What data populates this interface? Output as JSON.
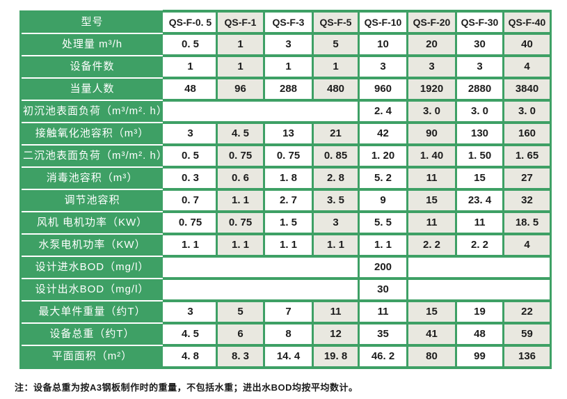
{
  "colors": {
    "table_green": "#3ea065",
    "cell_shaded": "#e9e8e0",
    "cell_white": "#ffffff",
    "data_text": "#1c1c1c",
    "label_text": "#ffffff"
  },
  "table": {
    "columns": [
      "型号",
      "QS-F-0. 5",
      "QS-F-1",
      "QS-F-3",
      "QS-F-5",
      "QS-F-10",
      "QS-F-20",
      "QS-F-30",
      "QS-F-40"
    ],
    "rows": [
      {
        "label": "处理量 m³/h",
        "cells": [
          {
            "text": "0. 5"
          },
          {
            "text": "1"
          },
          {
            "text": "3"
          },
          {
            "text": "5"
          },
          {
            "text": "10"
          },
          {
            "text": "20"
          },
          {
            "text": "30"
          },
          {
            "text": "40"
          }
        ]
      },
      {
        "label": "设备件数",
        "cells": [
          {
            "text": "1"
          },
          {
            "text": "1"
          },
          {
            "text": "1"
          },
          {
            "text": "1"
          },
          {
            "text": "3"
          },
          {
            "text": "3"
          },
          {
            "text": "3"
          },
          {
            "text": "4"
          }
        ]
      },
      {
        "label": "当量人数",
        "cells": [
          {
            "text": "48"
          },
          {
            "text": "96"
          },
          {
            "text": "288"
          },
          {
            "text": "480"
          },
          {
            "text": "960"
          },
          {
            "text": "1920"
          },
          {
            "text": "2880"
          },
          {
            "text": "3840"
          }
        ]
      },
      {
        "label": "初沉池表面负荷（m³/m². h）",
        "cells": [
          {
            "text": "",
            "span": 4
          },
          {
            "text": "2. 4"
          },
          {
            "text": "3. 0"
          },
          {
            "text": "3. 0"
          },
          {
            "text": "3. 0"
          }
        ]
      },
      {
        "label": "接触氧化池容积（m³）",
        "cells": [
          {
            "text": "3"
          },
          {
            "text": "4. 5"
          },
          {
            "text": "13"
          },
          {
            "text": "21"
          },
          {
            "text": "42"
          },
          {
            "text": "90"
          },
          {
            "text": "130"
          },
          {
            "text": "160"
          }
        ]
      },
      {
        "label": "二沉池表面负荷（m³/m². h）",
        "cells": [
          {
            "text": "0. 5"
          },
          {
            "text": "0. 75"
          },
          {
            "text": "0. 75"
          },
          {
            "text": "0. 85"
          },
          {
            "text": "1. 20"
          },
          {
            "text": "1. 40"
          },
          {
            "text": "1. 50"
          },
          {
            "text": "1. 65"
          }
        ]
      },
      {
        "label": "消毒池容积（m³）",
        "cells": [
          {
            "text": "0. 3"
          },
          {
            "text": "0. 6"
          },
          {
            "text": "1. 8"
          },
          {
            "text": "2. 8"
          },
          {
            "text": "5. 2"
          },
          {
            "text": "11"
          },
          {
            "text": "15"
          },
          {
            "text": "27"
          }
        ]
      },
      {
        "label": "调节池容积",
        "cells": [
          {
            "text": "0. 7"
          },
          {
            "text": "1. 1"
          },
          {
            "text": "2. 7"
          },
          {
            "text": "3. 5"
          },
          {
            "text": "9"
          },
          {
            "text": "15"
          },
          {
            "text": "23. 4"
          },
          {
            "text": "32"
          }
        ]
      },
      {
        "label": "风机 电机功率（KW）",
        "cells": [
          {
            "text": "0. 75"
          },
          {
            "text": "0. 75"
          },
          {
            "text": "1. 5"
          },
          {
            "text": "3"
          },
          {
            "text": "5. 5"
          },
          {
            "text": "11"
          },
          {
            "text": "11"
          },
          {
            "text": "18. 5"
          }
        ]
      },
      {
        "label": "水泵电机功率（KW）",
        "cells": [
          {
            "text": "1. 1"
          },
          {
            "text": "1. 1"
          },
          {
            "text": "1. 1"
          },
          {
            "text": "1. 1"
          },
          {
            "text": "1. 1"
          },
          {
            "text": "2. 2"
          },
          {
            "text": "2. 2"
          },
          {
            "text": "4"
          }
        ]
      },
      {
        "label": "设计进水BOD（mg/l）",
        "cells": [
          {
            "text": "",
            "span": 4
          },
          {
            "text": "200"
          },
          {
            "text": "",
            "span": 3
          }
        ]
      },
      {
        "label": "设计出水BOD（mg/l）",
        "cells": [
          {
            "text": "",
            "span": 4
          },
          {
            "text": "30"
          },
          {
            "text": "",
            "span": 3
          }
        ]
      },
      {
        "label": "最大单件重量（约T）",
        "cells": [
          {
            "text": "3"
          },
          {
            "text": "5"
          },
          {
            "text": "7"
          },
          {
            "text": "11"
          },
          {
            "text": "11"
          },
          {
            "text": "15"
          },
          {
            "text": "19"
          },
          {
            "text": "22"
          }
        ]
      },
      {
        "label": "设备总重（约T）",
        "cells": [
          {
            "text": "4. 5"
          },
          {
            "text": "6"
          },
          {
            "text": "8"
          },
          {
            "text": "12"
          },
          {
            "text": "35"
          },
          {
            "text": "41"
          },
          {
            "text": "48"
          },
          {
            "text": "59"
          }
        ]
      },
      {
        "label": "平面面积（m²）",
        "cells": [
          {
            "text": "4. 8"
          },
          {
            "text": "8. 3"
          },
          {
            "text": "14. 4"
          },
          {
            "text": "19. 8"
          },
          {
            "text": "46. 2"
          },
          {
            "text": "80"
          },
          {
            "text": "99"
          },
          {
            "text": "136"
          }
        ]
      }
    ],
    "note": "注：设备总重为按A3钢板制作时的重量，不包括水重；进出水BOD均按平均数计。"
  }
}
